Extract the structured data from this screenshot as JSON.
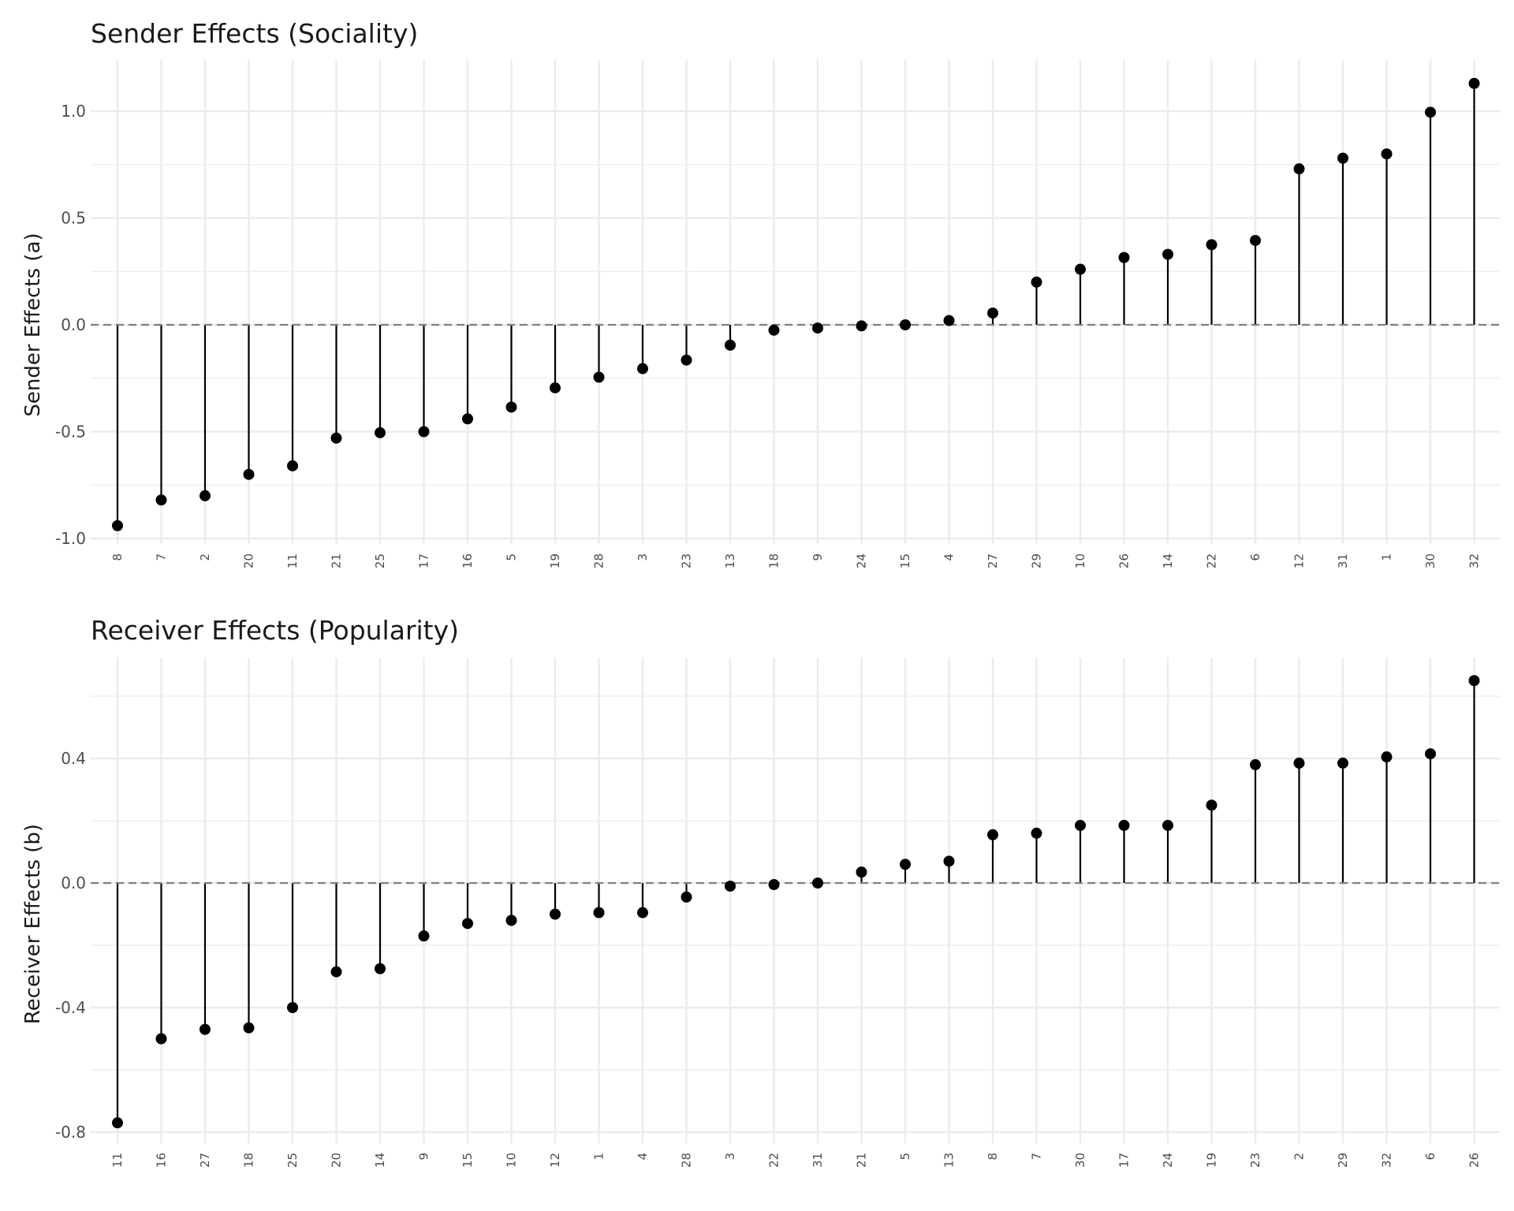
{
  "chart_data": [
    {
      "type": "lollipop",
      "title": "Sender Effects (Sociality)",
      "xlabel": "",
      "ylabel": "Sender Effects (a)",
      "ylim": [
        -1.0,
        1.2
      ],
      "yticks": [
        -1.0,
        -0.5,
        0.0,
        0.5,
        1.0
      ],
      "ytick_labels": [
        "-1.0",
        "-0.5",
        "0.0",
        "0.5",
        "1.0"
      ],
      "reference_line": 0.0,
      "grid": true,
      "categories": [
        "8",
        "7",
        "2",
        "20",
        "11",
        "21",
        "25",
        "17",
        "16",
        "5",
        "19",
        "28",
        "3",
        "23",
        "13",
        "18",
        "9",
        "24",
        "15",
        "4",
        "27",
        "29",
        "10",
        "26",
        "14",
        "22",
        "6",
        "12",
        "31",
        "1",
        "30",
        "32"
      ],
      "values": [
        -0.94,
        -0.82,
        -0.8,
        -0.7,
        -0.66,
        -0.53,
        -0.505,
        -0.5,
        -0.44,
        -0.385,
        -0.295,
        -0.245,
        -0.205,
        -0.165,
        -0.095,
        -0.025,
        -0.015,
        -0.005,
        0.0,
        0.02,
        0.055,
        0.2,
        0.26,
        0.315,
        0.33,
        0.375,
        0.395,
        0.73,
        0.78,
        0.8,
        0.995,
        1.13
      ]
    },
    {
      "type": "lollipop",
      "title": "Receiver Effects (Popularity)",
      "xlabel": "",
      "ylabel": "Receiver Effects (b)",
      "ylim": [
        -0.8,
        0.65
      ],
      "yticks": [
        -0.8,
        -0.4,
        0.0,
        0.4
      ],
      "ytick_labels": [
        "-0.8",
        "-0.4",
        "0.0",
        "0.4"
      ],
      "reference_line": 0.0,
      "grid": true,
      "categories": [
        "11",
        "16",
        "27",
        "18",
        "25",
        "20",
        "14",
        "9",
        "15",
        "10",
        "12",
        "1",
        "4",
        "28",
        "3",
        "22",
        "31",
        "21",
        "5",
        "13",
        "8",
        "7",
        "30",
        "17",
        "24",
        "19",
        "23",
        "2",
        "29",
        "32",
        "6",
        "26"
      ],
      "values": [
        -0.77,
        -0.5,
        -0.47,
        -0.465,
        -0.4,
        -0.285,
        -0.275,
        -0.17,
        -0.13,
        -0.12,
        -0.1,
        -0.095,
        -0.095,
        -0.045,
        -0.01,
        -0.005,
        0.0,
        0.035,
        0.06,
        0.07,
        0.155,
        0.16,
        0.185,
        0.185,
        0.185,
        0.25,
        0.38,
        0.385,
        0.385,
        0.405,
        0.415,
        0.65
      ]
    }
  ]
}
